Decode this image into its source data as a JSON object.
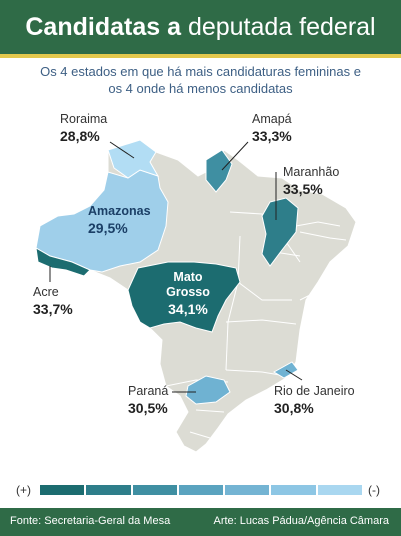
{
  "header": {
    "title_bold": "Candidatas a",
    "title_rest": "deputada federal"
  },
  "subtitle": {
    "line1": "Os 4 estados em que há mais candidaturas femininas e",
    "line2": "os 4 onde há menos candidatas"
  },
  "states": {
    "roraima": {
      "name": "Roraima",
      "pct": "28,8%"
    },
    "amapa": {
      "name": "Amapá",
      "pct": "33,3%"
    },
    "maranhao": {
      "name": "Maranhão",
      "pct": "33,5%"
    },
    "amazonas": {
      "name": "Amazonas",
      "pct": "29,5%"
    },
    "acre": {
      "name": "Acre",
      "pct": "33,7%"
    },
    "mato_grosso": {
      "name_line1": "Mato",
      "name_line2": "Grosso",
      "pct": "34,1%"
    },
    "parana": {
      "name": "Paraná",
      "pct": "30,5%"
    },
    "rio_de_janeiro": {
      "name": "Rio de Janeiro",
      "pct": "30,8%"
    }
  },
  "legend": {
    "more_label": "(+)",
    "less_label": "(-)",
    "colors": [
      "#1c6c70",
      "#2e7e8a",
      "#3f8fa2",
      "#5aa3bf",
      "#74b4d3",
      "#8dc6e4",
      "#a9d7f0"
    ]
  },
  "colors": {
    "header": "#2f6b47",
    "base_land": "#dcdcd4",
    "state_border": "#ffffff"
  },
  "footer": {
    "source": "Fonte: Secretaria-Geral da Mesa",
    "credit": "Arte: Lucas Pádua/Agência Câmara"
  }
}
